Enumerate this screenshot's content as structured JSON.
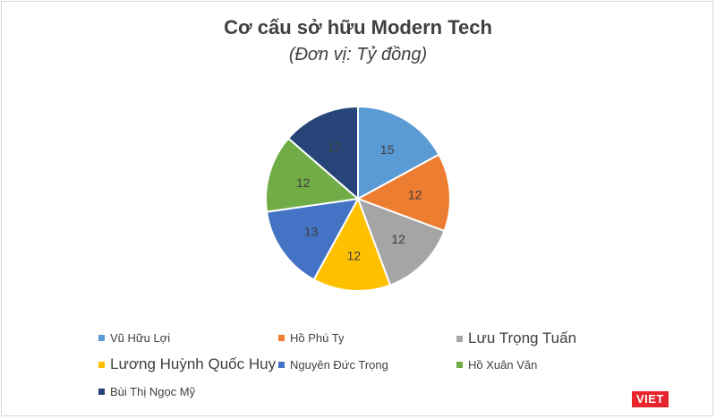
{
  "chart_data": {
    "type": "pie",
    "title": "Cơ cấu sở hữu Modern Tech",
    "subtitle": "(Đơn vị: Tỷ đồng)",
    "legend_position": "bottom",
    "slices": [
      {
        "label": "Vũ Hữu Lợi",
        "value": 15,
        "color": "#5b9bd5"
      },
      {
        "label": "Hồ Phú Ty",
        "value": 12,
        "color": "#ed7d31"
      },
      {
        "label": "Lưu Trọng Tuấn",
        "value": 12,
        "color": "#a5a5a5"
      },
      {
        "label": "Lương Huỳnh Quốc Huy",
        "value": 12,
        "color": "#ffc000"
      },
      {
        "label": "Nguyên Đức Trọng",
        "value": 13,
        "color": "#4472c4"
      },
      {
        "label": "Hồ Xuân Văn",
        "value": 12,
        "color": "#70ad47"
      },
      {
        "label": "Bùi Thị Ngọc Mỹ",
        "value": 12,
        "color": "#264478"
      }
    ]
  },
  "logo": {
    "text": "VIET"
  }
}
